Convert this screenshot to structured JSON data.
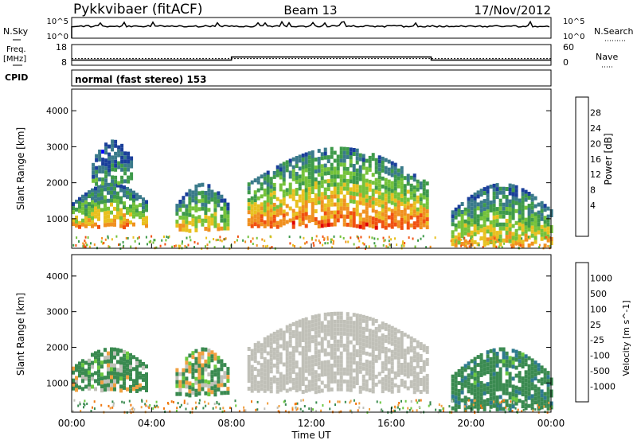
{
  "header": {
    "station": "Pykkvibaer (fitACF)",
    "beam": "Beam 13",
    "date": "17/Nov/2012"
  },
  "nsky_panel": {
    "left_label": "N.Sky",
    "right_label": "N.Search",
    "left_ticks": [
      "10^5",
      "10^0"
    ],
    "right_ticks": [
      "10^5",
      "10^0"
    ]
  },
  "freq_panel": {
    "left_label_line1": "Freq.",
    "left_label_line2": "[MHz]",
    "right_label": "Nave",
    "left_ticks": [
      "18",
      "8"
    ],
    "right_ticks": [
      "60",
      "0"
    ]
  },
  "cpid": {
    "label": "CPID",
    "mode_text": "normal (fast stereo) 153"
  },
  "power_panel": {
    "ylabel": "Slant Range [km]",
    "yticks": [
      "4000",
      "3000",
      "2000",
      "1000"
    ],
    "colorbar_label": "Power [dB]",
    "colorbar_ticks": [
      "28",
      "24",
      "20",
      "16",
      "12",
      "8",
      "4"
    ],
    "colorbar_colors": [
      "#0000ff",
      "#1a3f9a",
      "#3a7a8a",
      "#3e9a4a",
      "#74c23a",
      "#e8c020",
      "#f09020",
      "#f05010",
      "#e00000"
    ]
  },
  "velocity_panel": {
    "ylabel": "Slant Range [km]",
    "yticks": [
      "4000",
      "3000",
      "2000",
      "1000"
    ],
    "colorbar_label": "Velocity [m s^-1]",
    "colorbar_ticks": [
      "1000",
      "500",
      "100",
      "25",
      "-25",
      "-100",
      "-500",
      "-1000"
    ],
    "colorbar_colors": [
      "#1e3aa0",
      "#2e7a8e",
      "#3a8a50",
      "#6ac840",
      "#c0c0b8",
      "#f0a040",
      "#f07810",
      "#e02000",
      "#e00000"
    ]
  },
  "x_axis": {
    "label": "Time UT",
    "ticks": [
      "00:00",
      "04:00",
      "08:00",
      "12:00",
      "16:00",
      "20:00",
      "00:00"
    ]
  },
  "chart_data": {
    "type": "heatmap",
    "x_range_hours": [
      0,
      24
    ],
    "y_range_km": [
      180,
      4600
    ],
    "power_blobs": [
      {
        "t0": 0.0,
        "t1": 3.8,
        "r0": 800,
        "r1": 2000,
        "value_db": 20
      },
      {
        "t0": 1.0,
        "t1": 3.0,
        "r0": 2000,
        "r1": 3200,
        "value_db": 10
      },
      {
        "t0": 5.2,
        "t1": 7.8,
        "r0": 700,
        "r1": 2000,
        "value_db": 18
      },
      {
        "t0": 8.8,
        "t1": 17.8,
        "r0": 800,
        "r1": 3000,
        "value_db": 22
      },
      {
        "t0": 19.0,
        "t1": 24.0,
        "r0": 300,
        "r1": 2000,
        "value_db": 18
      }
    ],
    "velocity_blobs": [
      {
        "t0": 0.0,
        "t1": 3.8,
        "r0": 800,
        "r1": 2000,
        "value_ms": 100
      },
      {
        "t0": 5.2,
        "t1": 7.8,
        "r0": 700,
        "r1": 2000,
        "value_ms": 50
      },
      {
        "t0": 8.8,
        "t1": 17.8,
        "r0": 800,
        "r1": 3000,
        "value_ms": 0
      },
      {
        "t0": 19.0,
        "t1": 24.0,
        "r0": 300,
        "r1": 2000,
        "value_ms": 200
      }
    ],
    "freq_mhz": [
      {
        "t0": 0.0,
        "t1": 8.0,
        "value": 10.5
      },
      {
        "t0": 8.0,
        "t1": 18.0,
        "value": 12.0
      },
      {
        "t0": 18.0,
        "t1": 24.0,
        "value": 10.5
      }
    ]
  }
}
